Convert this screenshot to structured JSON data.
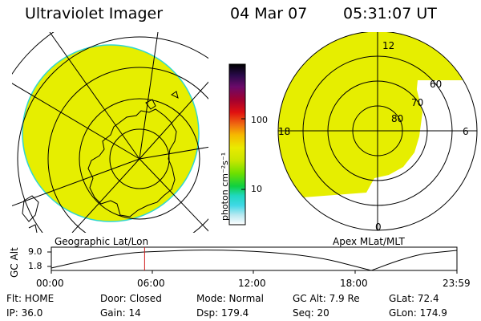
{
  "header": {
    "title": "Ultraviolet Imager",
    "date": "04 Mar 07",
    "time": "05:31:07 UT"
  },
  "left_panel": {
    "caption": "Geographic Lat/Lon"
  },
  "right_panel": {
    "caption": "Apex MLat/MLT",
    "mlt_labels": [
      "12",
      "6",
      "0",
      "18"
    ],
    "lat_labels": [
      "60",
      "70",
      "80"
    ]
  },
  "colorbar": {
    "label": "photon cm⁻²s⁻¹",
    "ticks": [
      "100",
      "10"
    ]
  },
  "altitude_plot": {
    "ylabel": "GC Alt",
    "yticks": [
      "9.0",
      "1.8"
    ],
    "xticks": [
      "00:00",
      "06:00",
      "12:00",
      "18:00",
      "23:59"
    ],
    "marker_time_hours": 5.52
  },
  "status": {
    "row1": [
      "Flt: HOME",
      "Door: Closed",
      "Mode: Normal",
      "GC Alt: 7.9 Re",
      "GLat: 72.4"
    ],
    "row2": [
      "IP: 36.0",
      "Gain: 14",
      "Dsp: 179.4",
      "Seq: 20",
      "GLon: 174.9"
    ]
  },
  "colors": {
    "emission": "#e6ee00",
    "emission_edge": "#2fd7d0",
    "marker": "#d11a1a"
  }
}
